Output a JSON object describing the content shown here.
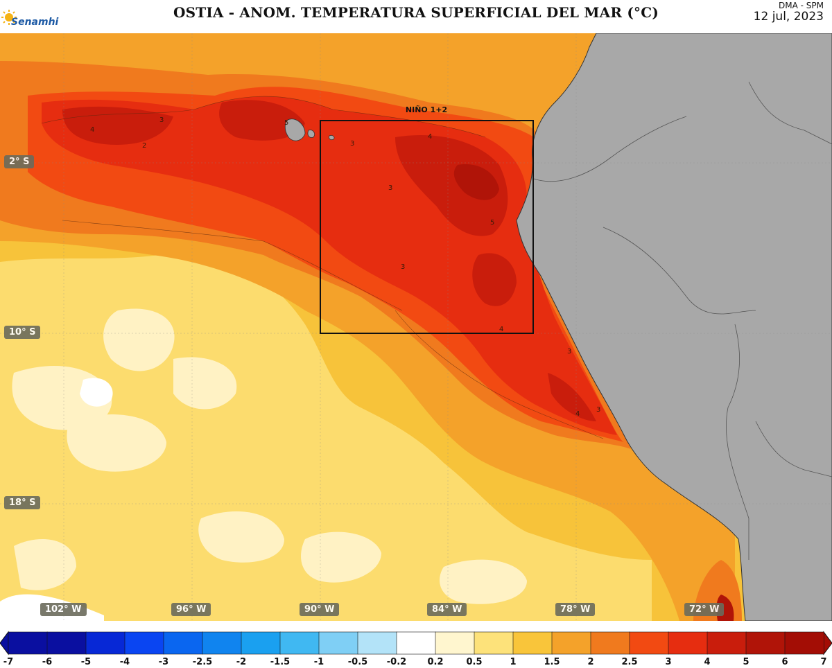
{
  "header": {
    "title": "OSTIA - ANOM. TEMPERATURA SUPERFICIAL DEL MAR (°C)",
    "subtitle": "DMA - SPM",
    "date": "12 jul, 2023",
    "logo_text": "Senamhi"
  },
  "map": {
    "region_label": "NIÑO 1+2",
    "lat_labels": [
      "2° S",
      "10° S",
      "18° S"
    ],
    "lon_labels": [
      "102° W",
      "96° W",
      "90° W",
      "84° W",
      "78° W",
      "72° W"
    ],
    "contour_labels": [
      "4",
      "3",
      "2",
      "5",
      "3",
      "4",
      "3",
      "5",
      "3",
      "4",
      "3",
      "4",
      "3"
    ],
    "land_color": "#a8a8a8"
  },
  "colorbar": {
    "ticks": [
      "-7",
      "-6",
      "-5",
      "-4",
      "-3",
      "-2.5",
      "-2",
      "-1.5",
      "-1",
      "-0.5",
      "-0.2",
      "0.2",
      "0.5",
      "1",
      "1.5",
      "2",
      "2.5",
      "3",
      "4",
      "5",
      "6",
      "7"
    ],
    "colors": [
      "#0a0fa0",
      "#0728d6",
      "#0a45f2",
      "#0a66f0",
      "#1084ef",
      "#1aa0f0",
      "#40b8f2",
      "#7fcff5",
      "#b3e3f8",
      "#ffffff",
      "#fff6cf",
      "#fde27a",
      "#f9c53a",
      "#f4a22a",
      "#f07a1e",
      "#f24a12",
      "#e62d10",
      "#c91d0c",
      "#b01408",
      "#a30d05"
    ]
  }
}
